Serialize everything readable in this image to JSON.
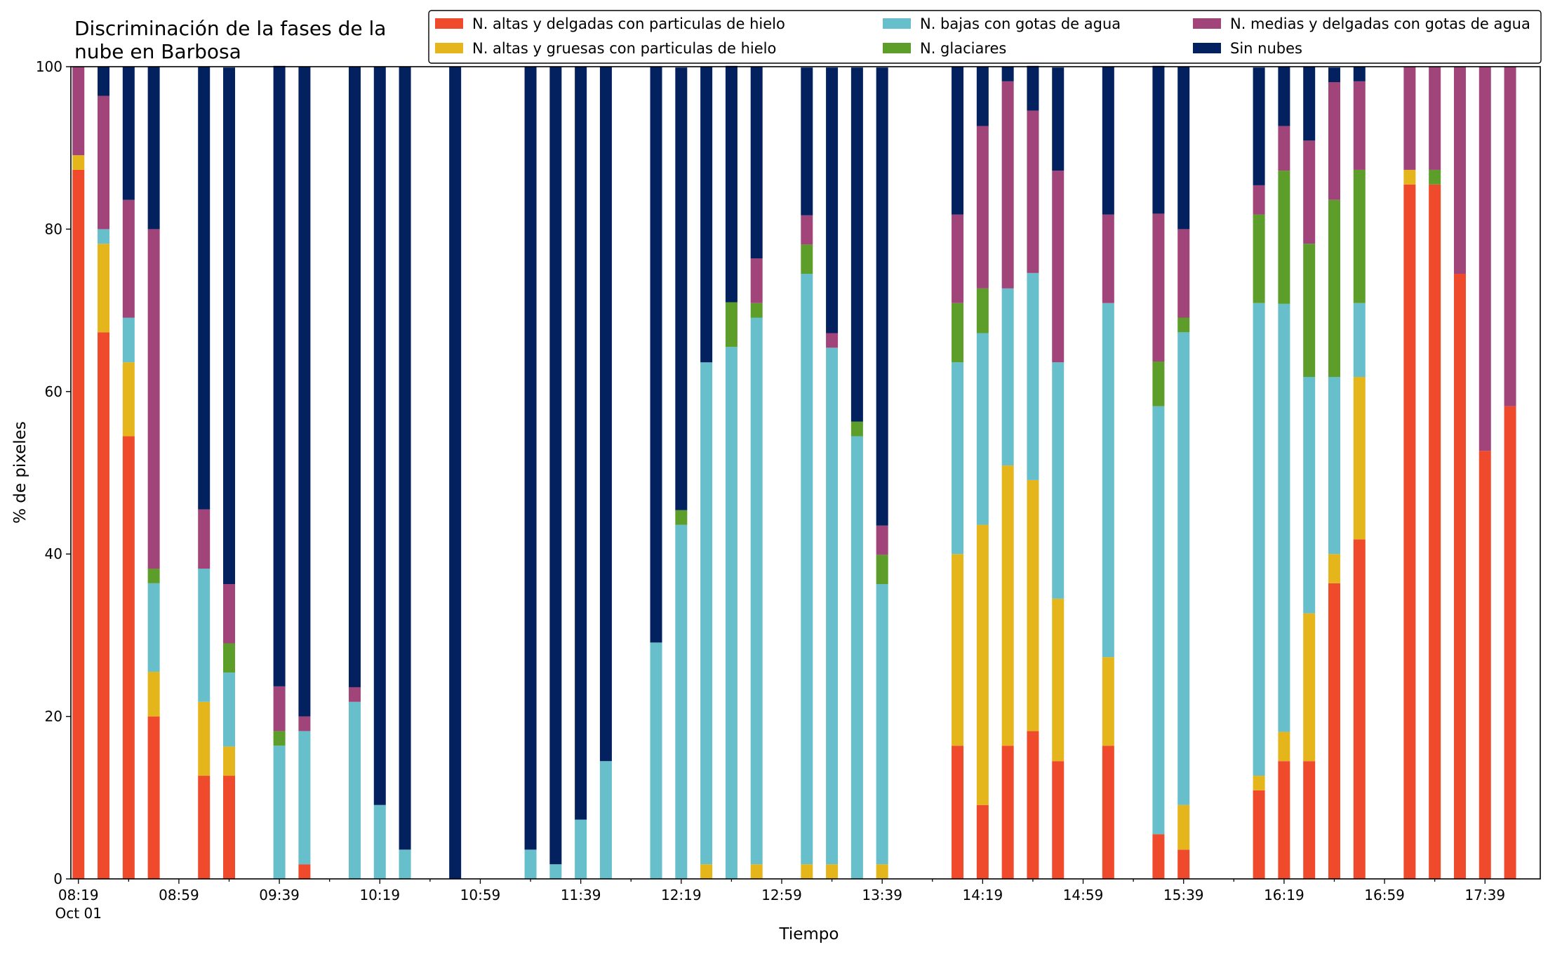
{
  "chart_data": {
    "type": "bar",
    "stacked": true,
    "title": "Discriminación de la fases de la nube en Barbosa",
    "title_lines": [
      "Discriminación de la fases de la",
      "nube en Barbosa"
    ],
    "xlabel": "Tiempo",
    "ylabel": "% de pixeles",
    "ylim": [
      0,
      100
    ],
    "yticks": [
      0,
      20,
      40,
      60,
      80,
      100
    ],
    "x_unit": "minutes since 08:19",
    "xlim": [
      -3,
      582
    ],
    "xticks": [
      {
        "t": 0,
        "label": "08:19",
        "sublabel": "Oct 01"
      },
      {
        "t": 40,
        "label": "08:59"
      },
      {
        "t": 80,
        "label": "09:39"
      },
      {
        "t": 120,
        "label": "10:19"
      },
      {
        "t": 160,
        "label": "10:59"
      },
      {
        "t": 200,
        "label": "11:39"
      },
      {
        "t": 240,
        "label": "12:19"
      },
      {
        "t": 280,
        "label": "12:59"
      },
      {
        "t": 320,
        "label": "13:39"
      },
      {
        "t": 360,
        "label": "14:19"
      },
      {
        "t": 400,
        "label": "14:59"
      },
      {
        "t": 440,
        "label": "15:39"
      },
      {
        "t": 480,
        "label": "16:19"
      },
      {
        "t": 520,
        "label": "16:59"
      },
      {
        "t": 560,
        "label": "17:39"
      }
    ],
    "grid": false,
    "legend_position": "top-right",
    "x": [
      "08:19",
      "08:29",
      "08:39",
      "08:49",
      "09:09",
      "09:19",
      "09:39",
      "09:49",
      "10:09",
      "10:19",
      "10:29",
      "10:49",
      "11:19",
      "11:29",
      "11:39",
      "11:49",
      "12:09",
      "12:19",
      "12:29",
      "12:39",
      "12:49",
      "13:09",
      "13:19",
      "13:29",
      "13:39",
      "14:09",
      "14:19",
      "14:29",
      "14:39",
      "14:49",
      "15:09",
      "15:29",
      "15:39",
      "16:09",
      "16:19",
      "16:29",
      "16:39",
      "16:49",
      "17:09",
      "17:19",
      "17:29",
      "17:39",
      "17:49"
    ],
    "t": [
      0,
      10,
      20,
      30,
      50,
      60,
      80,
      90,
      110,
      120,
      130,
      150,
      180,
      190,
      200,
      210,
      230,
      240,
      250,
      260,
      270,
      290,
      300,
      310,
      320,
      350,
      360,
      370,
      380,
      390,
      410,
      430,
      440,
      470,
      480,
      490,
      500,
      510,
      530,
      540,
      550,
      560,
      570
    ],
    "series": [
      {
        "name": "N. altas y delgadas con particulas de hielo",
        "color": "#ef4a2b",
        "values": [
          87.3,
          67.3,
          54.5,
          20.0,
          12.7,
          12.7,
          0,
          1.8,
          0,
          0,
          0,
          0,
          0,
          0,
          0,
          0,
          0,
          0,
          0,
          0,
          0,
          0,
          0,
          0,
          0,
          16.4,
          9.1,
          16.4,
          18.2,
          14.5,
          16.4,
          5.5,
          3.6,
          10.9,
          14.5,
          14.5,
          36.4,
          41.8,
          85.5,
          85.5,
          74.5,
          52.7,
          58.2
        ]
      },
      {
        "name": "N. altas y gruesas con particulas de hielo",
        "color": "#e5b51c",
        "values": [
          1.8,
          10.9,
          9.1,
          5.5,
          9.1,
          3.6,
          0,
          0,
          0,
          0,
          0,
          0,
          0,
          0,
          0,
          0,
          0,
          0,
          1.8,
          0,
          1.8,
          1.8,
          1.8,
          0,
          1.8,
          23.6,
          34.5,
          34.5,
          30.9,
          20.0,
          10.9,
          0,
          5.5,
          1.8,
          3.6,
          18.2,
          3.6,
          20.0,
          1.8,
          0,
          0,
          0,
          0
        ]
      },
      {
        "name": "N. bajas con gotas de agua",
        "color": "#67bfcb",
        "values": [
          0,
          1.8,
          5.5,
          10.9,
          16.4,
          9.1,
          16.4,
          16.4,
          21.8,
          9.1,
          3.6,
          0,
          3.6,
          1.8,
          7.3,
          14.5,
          29.1,
          43.6,
          61.8,
          65.5,
          67.3,
          72.7,
          63.6,
          54.5,
          34.5,
          23.6,
          23.6,
          21.8,
          25.5,
          29.1,
          43.6,
          52.7,
          58.2,
          58.2,
          52.7,
          29.1,
          21.8,
          9.1,
          0,
          0,
          0,
          0,
          0
        ]
      },
      {
        "name": "N. glaciares",
        "color": "#5d9e2b",
        "values": [
          0,
          0,
          0,
          1.8,
          0,
          3.6,
          1.8,
          0,
          0,
          0,
          0,
          0,
          0,
          0,
          0,
          0,
          0,
          1.8,
          0,
          5.5,
          1.8,
          3.6,
          0,
          1.8,
          3.6,
          7.3,
          5.5,
          0,
          0,
          0,
          0,
          5.5,
          1.8,
          10.9,
          16.4,
          16.4,
          21.8,
          16.4,
          0,
          1.8,
          0,
          0,
          0
        ]
      },
      {
        "name": "N. medias y delgadas con gotas de agua",
        "color": "#a1447a",
        "values": [
          10.9,
          16.4,
          14.5,
          41.8,
          7.3,
          7.3,
          5.5,
          1.8,
          1.8,
          0,
          0,
          0,
          0,
          0,
          0,
          0,
          0,
          0,
          0,
          0,
          5.5,
          3.6,
          1.8,
          0,
          3.6,
          10.9,
          20.0,
          25.5,
          20.0,
          23.6,
          10.9,
          18.2,
          10.9,
          3.6,
          5.5,
          12.7,
          14.5,
          10.9,
          12.7,
          12.7,
          25.5,
          47.3,
          41.8
        ]
      },
      {
        "name": "Sin nubes",
        "color": "#03215f",
        "values": [
          0,
          3.6,
          16.4,
          20.0,
          54.5,
          63.6,
          76.4,
          80.0,
          76.4,
          90.9,
          96.4,
          100,
          96.4,
          98.2,
          92.7,
          85.5,
          70.9,
          54.5,
          36.4,
          29.1,
          23.6,
          18.2,
          32.7,
          43.6,
          56.4,
          18.2,
          7.3,
          1.8,
          5.5,
          12.7,
          18.2,
          18.2,
          20.0,
          14.5,
          7.3,
          9.1,
          1.8,
          1.8,
          0,
          0,
          0,
          0,
          0
        ]
      }
    ]
  }
}
